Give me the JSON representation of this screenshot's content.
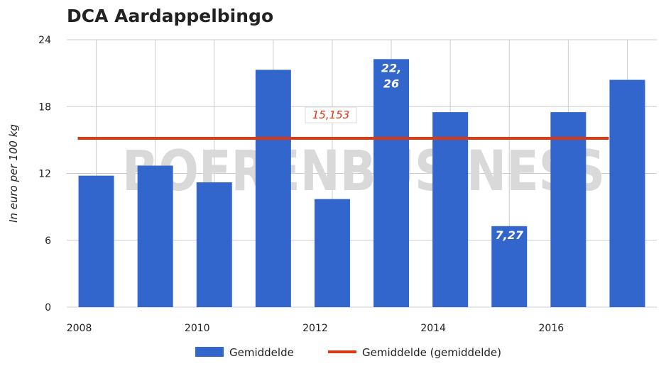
{
  "chart_data": {
    "type": "bar",
    "title": "DCA Aardappelbingo",
    "xlabel": "",
    "ylabel": "In euro per 100 kg",
    "ylim": [
      0,
      24
    ],
    "yticks": [
      "0",
      "6",
      "12",
      "18",
      "24"
    ],
    "xticks": [
      "2008",
      "2010",
      "2012",
      "2014",
      "2016"
    ],
    "categories": [
      "2008",
      "2009",
      "2010",
      "2011",
      "2012",
      "2013",
      "2014",
      "2015",
      "2016",
      "2017"
    ],
    "series": [
      {
        "name": "Gemiddelde",
        "type": "bar",
        "values": [
          11.8,
          12.7,
          11.2,
          21.3,
          9.7,
          22.26,
          17.5,
          7.27,
          17.5,
          20.4
        ]
      },
      {
        "name": "Gemiddelde (gemiddelde)",
        "type": "line",
        "values": [
          15.153,
          15.153,
          15.153,
          15.153,
          15.153,
          15.153,
          15.153,
          15.153,
          15.153,
          15.153
        ]
      }
    ],
    "annotations": [
      {
        "text": "22,\n26",
        "category": "2013"
      },
      {
        "text": "7,27",
        "category": "2015"
      },
      {
        "text": "15,153",
        "series": "Gemiddelde (gemiddelde)"
      }
    ],
    "watermark": "BOERENBUSINESS",
    "colors": {
      "bar": "#3366cc",
      "line": "#dc3912",
      "grid": "#cccccc",
      "watermark": "#d9d9d9"
    },
    "grid": true,
    "legend_position": "bottom"
  }
}
